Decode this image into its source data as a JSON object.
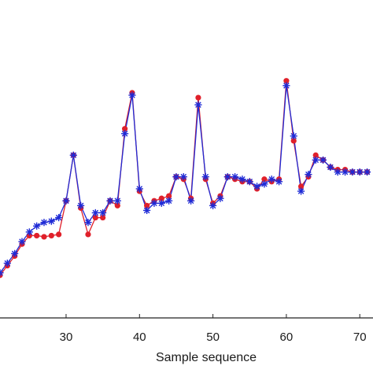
{
  "chart_data": {
    "type": "line",
    "title": "",
    "xlabel": "Sample sequence",
    "ylabel": "",
    "xlim": [
      21,
      71.8
    ],
    "x_ticks": [
      30,
      40,
      50,
      60,
      70
    ],
    "x_tick_labels": [
      "30",
      "40",
      "50",
      "60",
      "70"
    ],
    "y_ticks_visible": false,
    "ylim": [
      0,
      1
    ],
    "grid": false,
    "series": [
      {
        "marker": "asterisk",
        "color": "#1f2bd6",
        "line": true,
        "x": [
          21,
          22,
          23,
          24,
          25,
          26,
          27,
          28,
          29,
          30,
          31,
          32,
          33,
          34,
          35,
          36,
          37,
          38,
          39,
          40,
          41,
          42,
          43,
          44,
          45,
          46,
          47,
          48,
          49,
          50,
          51,
          52,
          53,
          54,
          55,
          56,
          57,
          58,
          59,
          60,
          61,
          62,
          63,
          64,
          65,
          66,
          67,
          68,
          69,
          70,
          71
        ],
        "y": [
          0.06,
          0.1,
          0.14,
          0.19,
          0.23,
          0.255,
          0.27,
          0.275,
          0.29,
          0.36,
          0.55,
          0.34,
          0.27,
          0.31,
          0.31,
          0.36,
          0.36,
          0.64,
          0.8,
          0.41,
          0.32,
          0.35,
          0.35,
          0.36,
          0.46,
          0.46,
          0.36,
          0.76,
          0.46,
          0.34,
          0.37,
          0.46,
          0.46,
          0.45,
          0.44,
          0.42,
          0.43,
          0.45,
          0.44,
          0.84,
          0.63,
          0.4,
          0.47,
          0.53,
          0.53,
          0.5,
          0.48,
          0.48,
          0.48,
          0.48,
          0.48
        ]
      },
      {
        "marker": "dot",
        "color": "#e0202a",
        "line": true,
        "x": [
          21,
          22,
          23,
          24,
          25,
          26,
          27,
          28,
          29,
          30,
          31,
          32,
          33,
          34,
          35,
          36,
          37,
          38,
          39,
          40,
          41,
          42,
          43,
          44,
          45,
          46,
          47,
          48,
          49,
          50,
          51,
          52,
          53,
          54,
          55,
          56,
          57,
          58,
          59,
          60,
          61,
          62,
          63,
          64,
          65,
          66,
          67,
          68,
          69,
          70,
          71
        ],
        "y": [
          0.05,
          0.09,
          0.13,
          0.18,
          0.215,
          0.215,
          0.21,
          0.215,
          0.22,
          0.36,
          0.55,
          0.33,
          0.22,
          0.29,
          0.29,
          0.36,
          0.34,
          0.66,
          0.81,
          0.4,
          0.34,
          0.36,
          0.37,
          0.38,
          0.46,
          0.45,
          0.37,
          0.79,
          0.45,
          0.35,
          0.38,
          0.46,
          0.45,
          0.44,
          0.44,
          0.41,
          0.45,
          0.44,
          0.45,
          0.86,
          0.61,
          0.42,
          0.46,
          0.55,
          0.53,
          0.5,
          0.49,
          0.49,
          0.48,
          0.48,
          0.48
        ]
      }
    ]
  }
}
